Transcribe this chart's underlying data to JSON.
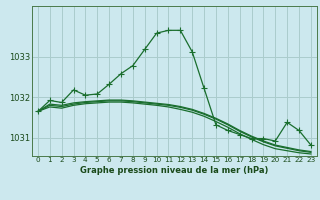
{
  "bg_color": "#cce8ee",
  "grid_color": "#aacccc",
  "line_color": "#1a6e2e",
  "title": "Graphe pression niveau de la mer (hPa)",
  "xlim": [
    -0.5,
    23.5
  ],
  "ylim": [
    1030.55,
    1034.25
  ],
  "yticks": [
    1031,
    1032,
    1033
  ],
  "ytick_labels": [
    "1031",
    "1032",
    "1033"
  ],
  "xticks": [
    0,
    1,
    2,
    3,
    4,
    5,
    6,
    7,
    8,
    9,
    10,
    11,
    12,
    13,
    14,
    15,
    16,
    17,
    18,
    19,
    20,
    21,
    22,
    23
  ],
  "series1": [
    1031.65,
    1031.92,
    1031.87,
    1032.18,
    1032.05,
    1032.08,
    1032.32,
    1032.58,
    1032.78,
    1033.18,
    1033.58,
    1033.65,
    1033.65,
    1033.12,
    1032.22,
    1031.32,
    1031.18,
    1031.08,
    1030.98,
    1030.98,
    1030.92,
    1031.38,
    1031.18,
    1030.82
  ],
  "series2": [
    1031.65,
    1031.76,
    1031.73,
    1031.8,
    1031.84,
    1031.86,
    1031.88,
    1031.88,
    1031.86,
    1031.83,
    1031.8,
    1031.76,
    1031.7,
    1031.63,
    1031.53,
    1031.4,
    1031.26,
    1031.1,
    1030.96,
    1030.83,
    1030.73,
    1030.68,
    1030.63,
    1030.6
  ],
  "series3": [
    1031.65,
    1031.8,
    1031.77,
    1031.83,
    1031.87,
    1031.89,
    1031.91,
    1031.91,
    1031.89,
    1031.86,
    1031.83,
    1031.8,
    1031.75,
    1031.68,
    1031.58,
    1031.46,
    1031.32,
    1031.16,
    1031.02,
    1030.9,
    1030.8,
    1030.74,
    1030.68,
    1030.64
  ],
  "series4": [
    1031.65,
    1031.83,
    1031.8,
    1031.86,
    1031.89,
    1031.91,
    1031.93,
    1031.93,
    1031.91,
    1031.88,
    1031.85,
    1031.82,
    1031.77,
    1031.7,
    1031.6,
    1031.48,
    1031.34,
    1031.18,
    1031.04,
    1030.92,
    1030.82,
    1030.76,
    1030.7,
    1030.66
  ]
}
